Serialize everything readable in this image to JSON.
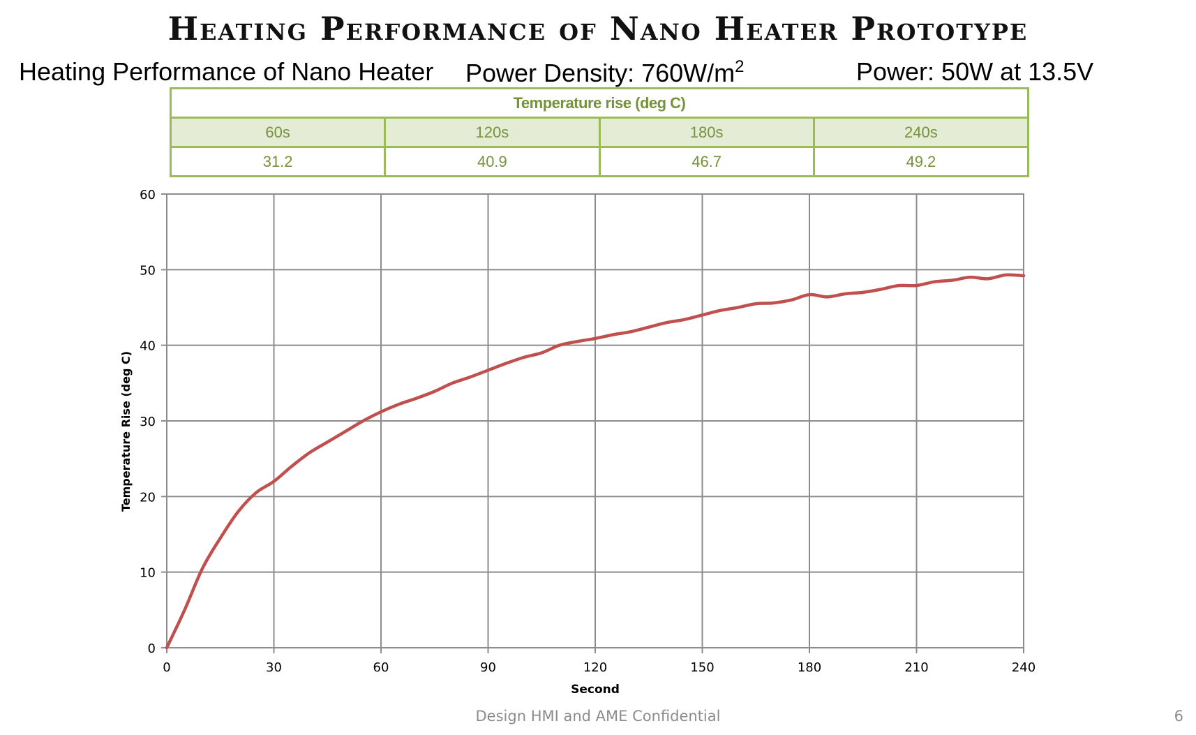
{
  "slide": {
    "title": "Heating Performance of Nano Heater Prototype",
    "subtitle_left": "Heating Performance of Nano Heater",
    "subtitle_mid": "Power Density: 760W/m",
    "subtitle_mid_sup": "2",
    "subtitle_right": "Power: 50W at 13.5V",
    "footer": "Design HMI and AME Confidential",
    "page_number": "6"
  },
  "table": {
    "header": "Temperature rise (deg C)",
    "columns": [
      "60s",
      "120s",
      "180s",
      "240s"
    ],
    "values": [
      "31.2",
      "40.9",
      "46.7",
      "49.2"
    ]
  },
  "colors": {
    "line": "#c0504d",
    "grid": "#8c8c8c",
    "table_border": "#9bbb59",
    "table_text": "#76923c",
    "table_fill": "#e4ecd5"
  },
  "chart_data": {
    "type": "line",
    "xlabel": "Second",
    "ylabel": "Temperature Rise (deg C)",
    "xlim": [
      0,
      240
    ],
    "ylim": [
      0,
      60
    ],
    "xticks": [
      0,
      30,
      60,
      90,
      120,
      150,
      180,
      210,
      240
    ],
    "yticks": [
      0,
      10,
      20,
      30,
      40,
      50,
      60
    ],
    "grid": true,
    "series": [
      {
        "x": [
          0,
          5,
          10,
          15,
          20,
          25,
          30,
          35,
          40,
          45,
          50,
          55,
          60,
          65,
          70,
          75,
          80,
          85,
          90,
          95,
          100,
          105,
          110,
          115,
          120,
          125,
          130,
          135,
          140,
          145,
          150,
          155,
          160,
          165,
          170,
          175,
          180,
          185,
          190,
          195,
          200,
          205,
          210,
          215,
          220,
          225,
          230,
          235,
          240
        ],
        "y": [
          0,
          5,
          10.5,
          14.5,
          18,
          20.5,
          22,
          24,
          25.8,
          27.2,
          28.6,
          30,
          31.2,
          32.2,
          33,
          33.9,
          35,
          35.8,
          36.7,
          37.6,
          38.4,
          39,
          40,
          40.5,
          40.9,
          41.4,
          41.8,
          42.4,
          43,
          43.4,
          44,
          44.6,
          45,
          45.5,
          45.6,
          46,
          46.7,
          46.4,
          46.8,
          47,
          47.4,
          47.9,
          47.9,
          48.4,
          48.6,
          49,
          48.8,
          49.3,
          49.2
        ]
      }
    ]
  }
}
